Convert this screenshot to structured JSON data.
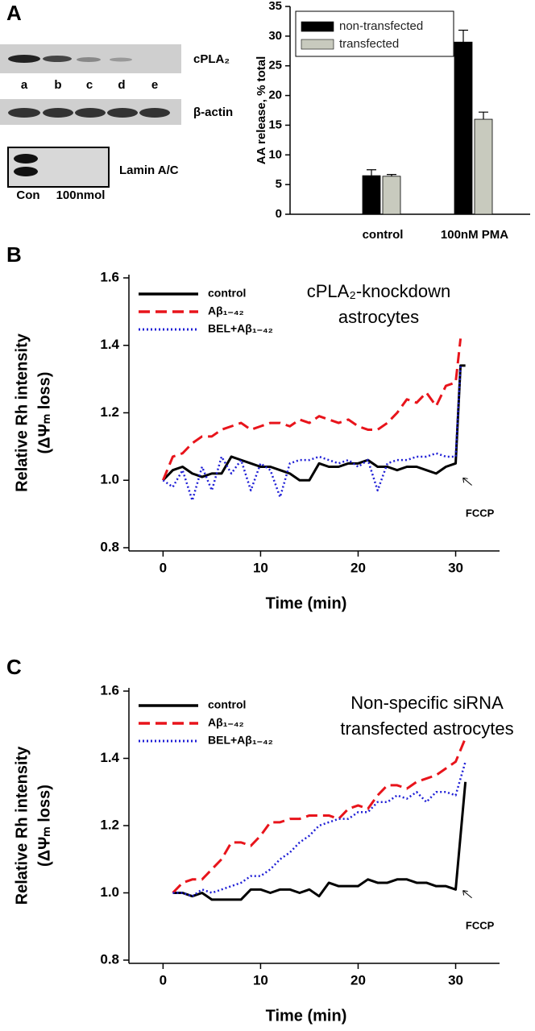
{
  "panels": [
    "A",
    "B",
    "C"
  ],
  "blot": {
    "lanes": [
      "a",
      "b",
      "c",
      "d",
      "e"
    ],
    "labels": [
      "cPLA₂",
      "β-actin",
      "Lamin A/C"
    ],
    "lamin_lanes": [
      "Con",
      "100nmol"
    ]
  },
  "chart_data": [
    {
      "type": "bar",
      "ylabel": "AA release, % total",
      "categories": [
        "control",
        "100nM PMA"
      ],
      "series": [
        {
          "name": "non-transfected",
          "color": "#000000",
          "values": [
            6.5,
            29
          ],
          "errors": [
            1,
            2
          ]
        },
        {
          "name": "transfected",
          "color": "#c8cabe",
          "values": [
            6.4,
            16
          ],
          "errors": [
            0.3,
            1.2
          ]
        }
      ],
      "ylim": [
        0,
        35
      ],
      "yticks": [
        0,
        5,
        10,
        15,
        20,
        25,
        30,
        35
      ],
      "legend": "upper left"
    },
    {
      "type": "line",
      "ylabel": [
        "Relative Rh intensity",
        "(ΔΨₘ loss)"
      ],
      "xlabel": "Time (min)",
      "note": [
        "cPLA₂-knockdown",
        "astrocytes"
      ],
      "marker_note": "FCCP",
      "x": [
        0,
        1,
        2,
        3,
        4,
        5,
        6,
        7,
        8,
        9,
        10,
        11,
        12,
        13,
        14,
        15,
        16,
        17,
        18,
        19,
        20,
        21,
        22,
        23,
        24,
        25,
        26,
        27,
        28,
        29,
        30,
        30.5,
        31
      ],
      "series": [
        {
          "name": "control",
          "color": "#000000",
          "dash": "solid",
          "values": [
            1.0,
            1.03,
            1.04,
            1.02,
            1.01,
            1.02,
            1.02,
            1.07,
            1.06,
            1.05,
            1.04,
            1.04,
            1.03,
            1.02,
            1.0,
            1.0,
            1.05,
            1.04,
            1.04,
            1.05,
            1.05,
            1.06,
            1.04,
            1.04,
            1.03,
            1.04,
            1.04,
            1.03,
            1.02,
            1.04,
            1.05,
            1.34,
            1.34
          ]
        },
        {
          "name": "Aβ₁₋₄₂",
          "color": "#e8141b",
          "dash": "dashed",
          "values": [
            1.0,
            1.07,
            1.08,
            1.11,
            1.13,
            1.13,
            1.15,
            1.16,
            1.17,
            1.15,
            1.16,
            1.17,
            1.17,
            1.16,
            1.18,
            1.17,
            1.19,
            1.18,
            1.17,
            1.18,
            1.16,
            1.15,
            1.15,
            1.17,
            1.2,
            1.24,
            1.23,
            1.26,
            1.22,
            1.28,
            1.29,
            1.42,
            null
          ]
        },
        {
          "name": "BEL+Aβ₁₋₄₂",
          "color": "#1f1fd6",
          "dash": "dotted",
          "values": [
            1.0,
            0.98,
            1.03,
            0.94,
            1.04,
            0.97,
            1.07,
            1.02,
            1.06,
            0.97,
            1.05,
            1.03,
            0.95,
            1.05,
            1.06,
            1.06,
            1.07,
            1.06,
            1.05,
            1.06,
            1.04,
            1.06,
            0.97,
            1.05,
            1.06,
            1.06,
            1.07,
            1.07,
            1.08,
            1.07,
            1.07,
            1.34,
            null
          ]
        }
      ],
      "xlim": [
        -3.5,
        34.5
      ],
      "xticks": [
        0,
        10,
        20,
        30
      ],
      "ylim": [
        0.8,
        1.6
      ],
      "yticks": [
        0.8,
        {
          "value": 1,
          "label": "1.0"
        },
        1.2,
        1.4,
        1.6
      ],
      "legend": "upper left"
    },
    {
      "type": "line",
      "ylabel": [
        "Relative Rh intensity",
        "(ΔΨₘ loss)"
      ],
      "xlabel": "Time (min)",
      "note": [
        "Non-specific siRNA",
        "transfected astrocytes"
      ],
      "marker_note": "FCCP",
      "x": [
        1,
        2,
        3,
        4,
        5,
        6,
        7,
        8,
        9,
        10,
        11,
        12,
        13,
        14,
        15,
        16,
        17,
        18,
        19,
        20,
        21,
        22,
        23,
        24,
        25,
        26,
        27,
        28,
        29,
        30,
        31
      ],
      "series": [
        {
          "name": "control",
          "color": "#000000",
          "dash": "solid",
          "values": [
            1.0,
            1.0,
            0.99,
            1.0,
            0.98,
            0.98,
            0.98,
            0.98,
            1.01,
            1.01,
            1.0,
            1.01,
            1.01,
            1.0,
            1.01,
            0.99,
            1.03,
            1.02,
            1.02,
            1.02,
            1.04,
            1.03,
            1.03,
            1.04,
            1.04,
            1.03,
            1.03,
            1.02,
            1.02,
            1.01,
            1.33
          ]
        },
        {
          "name": "Aβ₁₋₄₂",
          "color": "#e8141b",
          "dash": "dashed",
          "values": [
            1.0,
            1.03,
            1.04,
            1.04,
            1.07,
            1.1,
            1.15,
            1.15,
            1.14,
            1.17,
            1.21,
            1.21,
            1.22,
            1.22,
            1.23,
            1.23,
            1.23,
            1.22,
            1.25,
            1.26,
            1.25,
            1.29,
            1.32,
            1.32,
            1.31,
            1.33,
            1.34,
            1.35,
            1.37,
            1.39,
            1.46
          ]
        },
        {
          "name": "BEL+Aβ₁₋₄₂",
          "color": "#1f1fd6",
          "dash": "dotted",
          "values": [
            1.0,
            1.0,
            0.99,
            1.01,
            1.0,
            1.01,
            1.02,
            1.03,
            1.05,
            1.05,
            1.07,
            1.1,
            1.12,
            1.15,
            1.17,
            1.2,
            1.21,
            1.22,
            1.22,
            1.24,
            1.24,
            1.27,
            1.27,
            1.29,
            1.28,
            1.3,
            1.27,
            1.3,
            1.3,
            1.29,
            1.39
          ]
        }
      ],
      "xlim": [
        -3.5,
        34.5
      ],
      "xticks": [
        0,
        10,
        20,
        30
      ],
      "ylim": [
        0.8,
        1.6
      ],
      "yticks": [
        0.8,
        {
          "value": 1,
          "label": "1.0"
        },
        1.2,
        1.4,
        1.6
      ],
      "legend": "upper left"
    }
  ]
}
